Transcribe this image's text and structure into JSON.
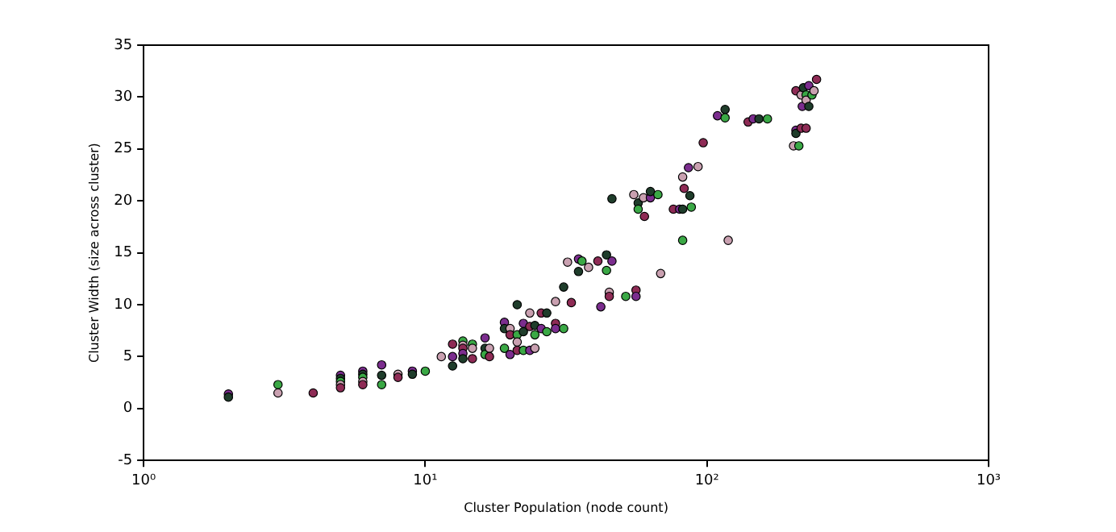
{
  "chart_data": {
    "type": "scatter",
    "xlabel": "Cluster Population (node count)",
    "ylabel": "Cluster Width (size across cluster)",
    "log": "x",
    "xlim": [
      1,
      1000
    ],
    "xticks": [
      {
        "value": 1,
        "label": "10⁰"
      },
      {
        "value": 10,
        "label": "10¹"
      },
      {
        "value": 100,
        "label": "10²"
      },
      {
        "value": 1000,
        "label": "10³"
      }
    ],
    "ylim": [
      -5,
      35
    ],
    "yticks": [
      -5,
      0,
      5,
      10,
      15,
      20,
      25,
      30,
      35
    ],
    "grid": false,
    "legend": false,
    "marker": "circle",
    "series": [
      {
        "x": [
          2,
          2,
          3,
          3,
          4,
          5,
          5,
          5,
          5,
          5,
          6,
          6,
          6,
          6,
          6,
          7,
          7,
          7,
          8,
          8,
          9,
          9,
          10,
          11.4,
          12.5,
          12.5,
          12.5,
          13.6,
          13.6,
          13.6,
          13.6,
          13.6,
          14.7,
          14.7,
          14.7,
          16.3,
          16.3,
          16.3,
          16.9,
          16.9,
          19.1,
          19.1,
          19.1,
          20,
          20,
          20,
          21.2,
          21.2,
          21.2,
          21.2,
          22.3,
          22.3,
          22.3,
          23.5,
          23.5,
          23.5,
          24.5,
          24.5,
          24.5,
          25.8,
          25.8,
          27,
          27,
          29,
          29,
          29,
          31,
          31,
          32,
          33,
          35,
          35,
          36,
          38,
          41,
          42,
          44,
          44,
          45,
          45,
          46,
          46,
          51.5,
          55,
          56,
          56,
          57,
          57,
          59.5,
          60,
          63,
          63,
          67,
          68.5,
          76,
          80,
          82,
          82,
          82,
          83,
          86,
          87,
          88,
          93,
          97,
          109,
          116,
          116,
          119,
          140,
          146,
          153,
          164,
          203,
          207,
          207,
          207,
          212,
          216,
          216,
          218,
          220,
          225,
          225,
          225,
          230,
          230,
          236,
          240,
          245
        ],
        "values": [
          1.4,
          1.1,
          2.3,
          1.5,
          1.5,
          3.2,
          2.9,
          2.6,
          2.3,
          2.0,
          3.6,
          3.3,
          3.0,
          2.6,
          2.3,
          4.2,
          3.2,
          2.3,
          3.3,
          3.0,
          3.6,
          3.3,
          3.6,
          5.0,
          6.2,
          5.0,
          4.1,
          6.5,
          6.1,
          5.8,
          5.3,
          4.8,
          6.2,
          5.8,
          4.8,
          6.8,
          5.8,
          5.2,
          5.8,
          5.0,
          8.3,
          7.7,
          5.8,
          7.7,
          7.1,
          5.2,
          10.0,
          7.1,
          6.4,
          5.6,
          8.2,
          7.4,
          5.6,
          9.2,
          7.9,
          5.6,
          8.0,
          7.1,
          5.8,
          9.2,
          7.7,
          9.2,
          7.4,
          10.3,
          8.2,
          7.7,
          11.7,
          7.7,
          14.1,
          10.2,
          14.4,
          13.2,
          14.2,
          13.6,
          14.2,
          9.8,
          14.8,
          13.3,
          11.2,
          10.8,
          14.2,
          20.2,
          10.8,
          20.6,
          11.4,
          10.8,
          19.8,
          19.2,
          20.3,
          18.5,
          20.3,
          20.9,
          20.6,
          13.0,
          19.2,
          19.2,
          19.2,
          16.2,
          22.3,
          21.2,
          23.2,
          20.5,
          19.4,
          23.3,
          25.6,
          28.2,
          28.8,
          28.0,
          16.2,
          27.6,
          27.9,
          27.9,
          27.9,
          25.3,
          30.6,
          26.8,
          26.5,
          25.3,
          30.2,
          27.0,
          29.1,
          30.9,
          30.2,
          29.7,
          27.0,
          31.1,
          29.1,
          30.2,
          30.6,
          31.7
        ],
        "colors": [
          "#7b2d8e",
          "#1f3d2b",
          "#3aa845",
          "#c9a0b0",
          "#8e2b55",
          "#7b2d8e",
          "#1f3d2b",
          "#3aa845",
          "#c9a0b0",
          "#8e2b55",
          "#7b2d8e",
          "#1f3d2b",
          "#3aa845",
          "#c9a0b0",
          "#8e2b55",
          "#7b2d8e",
          "#1f3d2b",
          "#3aa845",
          "#c9a0b0",
          "#8e2b55",
          "#7b2d8e",
          "#1f3d2b",
          "#3aa845",
          "#c9a0b0",
          "#8e2b55",
          "#7b2d8e",
          "#1f3d2b",
          "#3aa845",
          "#c9a0b0",
          "#8e2b55",
          "#7b2d8e",
          "#1f3d2b",
          "#3aa845",
          "#c9a0b0",
          "#8e2b55",
          "#7b2d8e",
          "#1f3d2b",
          "#3aa845",
          "#c9a0b0",
          "#8e2b55",
          "#7b2d8e",
          "#1f3d2b",
          "#3aa845",
          "#c9a0b0",
          "#8e2b55",
          "#7b2d8e",
          "#1f3d2b",
          "#3aa845",
          "#c9a0b0",
          "#8e2b55",
          "#7b2d8e",
          "#1f3d2b",
          "#3aa845",
          "#c9a0b0",
          "#8e2b55",
          "#7b2d8e",
          "#1f3d2b",
          "#3aa845",
          "#c9a0b0",
          "#8e2b55",
          "#7b2d8e",
          "#1f3d2b",
          "#3aa845",
          "#c9a0b0",
          "#8e2b55",
          "#7b2d8e",
          "#1f3d2b",
          "#3aa845",
          "#c9a0b0",
          "#8e2b55",
          "#7b2d8e",
          "#1f3d2b",
          "#3aa845",
          "#c9a0b0",
          "#8e2b55",
          "#7b2d8e",
          "#1f3d2b",
          "#3aa845",
          "#c9a0b0",
          "#8e2b55",
          "#7b2d8e",
          "#1f3d2b",
          "#3aa845",
          "#c9a0b0",
          "#8e2b55",
          "#7b2d8e",
          "#1f3d2b",
          "#3aa845",
          "#c9a0b0",
          "#8e2b55",
          "#7b2d8e",
          "#1f3d2b",
          "#3aa845",
          "#c9a0b0",
          "#8e2b55",
          "#7b2d8e",
          "#1f3d2b",
          "#3aa845",
          "#c9a0b0",
          "#8e2b55",
          "#7b2d8e",
          "#1f3d2b",
          "#3aa845",
          "#c9a0b0",
          "#8e2b55",
          "#7b2d8e",
          "#1f3d2b",
          "#3aa845",
          "#c9a0b0",
          "#8e2b55",
          "#7b2d8e",
          "#1f3d2b",
          "#3aa845",
          "#c9a0b0",
          "#8e2b55",
          "#7b2d8e",
          "#1f3d2b",
          "#3aa845",
          "#c9a0b0",
          "#8e2b55",
          "#7b2d8e",
          "#1f3d2b",
          "#3aa845",
          "#c9a0b0",
          "#8e2b55",
          "#7b2d8e",
          "#1f3d2b",
          "#3aa845",
          "#c9a0b0",
          "#8e2b55"
        ]
      }
    ]
  }
}
